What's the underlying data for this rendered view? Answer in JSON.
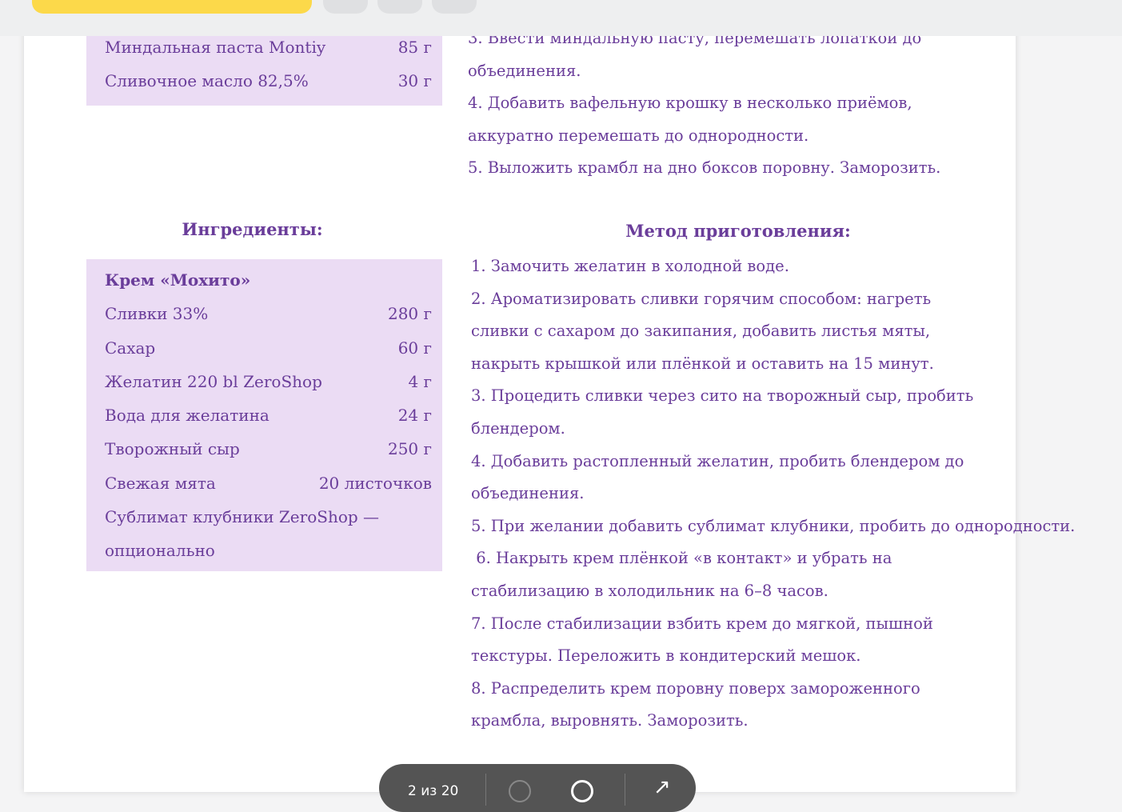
{
  "toolbar_top": {
    "yellow_button": "",
    "buttons": [
      "",
      "",
      ""
    ]
  },
  "box1": {
    "rows": [
      {
        "name": "Миндальная паста Montiy",
        "qty": "85 г"
      },
      {
        "name": "Сливочное масло 82,5%",
        "qty": "30 г"
      }
    ]
  },
  "steps1": [
    "3. Ввести миндальную пасту, перемешать лопаткой до объединения.",
    "4. Добавить вафельную крошку в несколько приёмов, аккуратно перемешать до однородности.",
    "5. Выложить крамбл на дно боксов поровну. Заморозить."
  ],
  "ingredients_title": "Ингредиенты:",
  "method_title": "Метод приготовления:",
  "box2": {
    "title": "Крем «Мохито»",
    "rows": [
      {
        "name": "Сливки 33%",
        "qty": "280 г"
      },
      {
        "name": "Сахар",
        "qty": "60 г"
      },
      {
        "name": "Желатин 220 bl ZeroShop",
        "qty": "4 г"
      },
      {
        "name": "Вода для желатина",
        "qty": "24 г"
      },
      {
        "name": "Творожный сыр",
        "qty": "250 г"
      },
      {
        "name": "Свежая мята",
        "qty": "20 листочков"
      }
    ],
    "last": "Сублимат клубники ZeroShop — опционально"
  },
  "steps2": [
    "1. Замочить желатин в холодной воде.",
    "2. Ароматизировать сливки горячим способом: нагреть сливки с сахаром до закипания, добавить листья мяты, накрыть крышкой или плёнкой и оставить на 15 минут.",
    "3. Процедить сливки через сито на творожный сыр, пробить блендером.",
    "4. Добавить растопленный желатин, пробить блендером до объединения.",
    "5. При желании добавить сублимат клубники, пробить до однородности.",
    " 6. Накрыть крем плёнкой «в контакт» и убрать на стабилизацию в холодильник на 6–8 часов.",
    "7. После стабилизации взбить крем до мягкой, пышной текстуры. Переложить в кондитерский мешок.",
    "8. Распределить крем поровну поверх замороженного крамбла, выровнять. Заморозить."
  ],
  "viewer": {
    "page": "2 из 20"
  }
}
